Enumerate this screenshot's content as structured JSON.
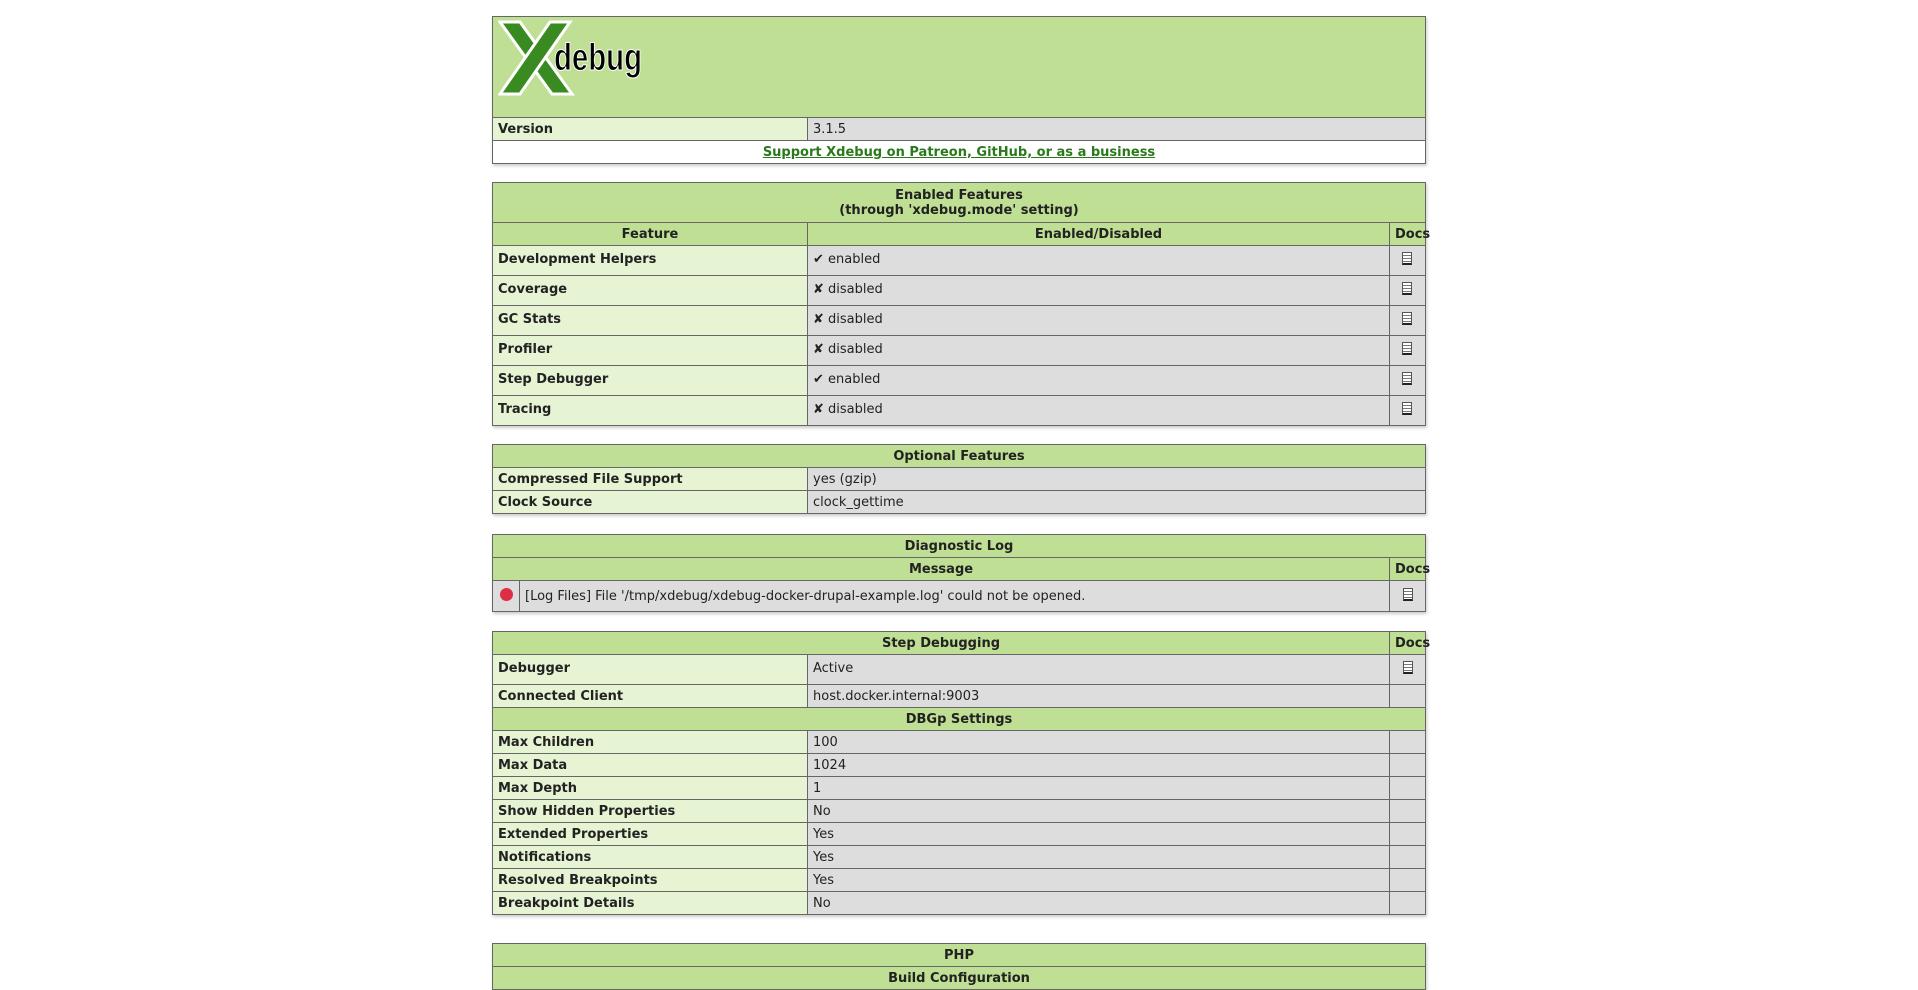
{
  "logo_text": "Xdebug",
  "header": {
    "version_label": "Version",
    "version_value": "3.1.5",
    "support_link": "Support Xdebug on Patreon, GitHub, or as a business"
  },
  "enabled_features": {
    "title": "Enabled Features",
    "subtitle": "(through 'xdebug.mode' setting)",
    "col_feature": "Feature",
    "col_status": "Enabled/Disabled",
    "col_docs": "Docs",
    "rows": [
      {
        "name": "Development Helpers",
        "status": "✔ enabled"
      },
      {
        "name": "Coverage",
        "status": "✘ disabled"
      },
      {
        "name": "GC Stats",
        "status": "✘ disabled"
      },
      {
        "name": "Profiler",
        "status": "✘ disabled"
      },
      {
        "name": "Step Debugger",
        "status": "✔ enabled"
      },
      {
        "name": "Tracing",
        "status": "✘ disabled"
      }
    ]
  },
  "optional_features": {
    "title": "Optional Features",
    "rows": [
      {
        "name": "Compressed File Support",
        "value": "yes (gzip)"
      },
      {
        "name": "Clock Source",
        "value": "clock_gettime"
      }
    ]
  },
  "diagnostic_log": {
    "title": "Diagnostic Log",
    "col_message": "Message",
    "col_docs": "Docs",
    "rows": [
      {
        "severity_color": "#dd2e44",
        "message": "[Log Files] File '/tmp/xdebug/xdebug-docker-drupal-example.log' could not be opened."
      }
    ]
  },
  "step_debugging": {
    "title": "Step Debugging",
    "col_docs": "Docs",
    "rows": [
      {
        "name": "Debugger",
        "value": "Active"
      },
      {
        "name": "Connected Client",
        "value": "host.docker.internal:9003"
      }
    ],
    "dbgp_title": "DBGp Settings",
    "dbgp_rows": [
      {
        "name": "Max Children",
        "value": "100"
      },
      {
        "name": "Max Data",
        "value": "1024"
      },
      {
        "name": "Max Depth",
        "value": "1"
      },
      {
        "name": "Show Hidden Properties",
        "value": "No"
      },
      {
        "name": "Extended Properties",
        "value": "Yes"
      },
      {
        "name": "Notifications",
        "value": "Yes"
      },
      {
        "name": "Resolved Breakpoints",
        "value": "Yes"
      },
      {
        "name": "Breakpoint Details",
        "value": "No"
      }
    ]
  },
  "php": {
    "title": "PHP",
    "subtitle": "Build Configuration"
  },
  "colors": {
    "header_bg": "#bedf94",
    "label_bg": "#e6f4d4",
    "value_bg": "#dddddd",
    "link": "#2a7a1c"
  }
}
